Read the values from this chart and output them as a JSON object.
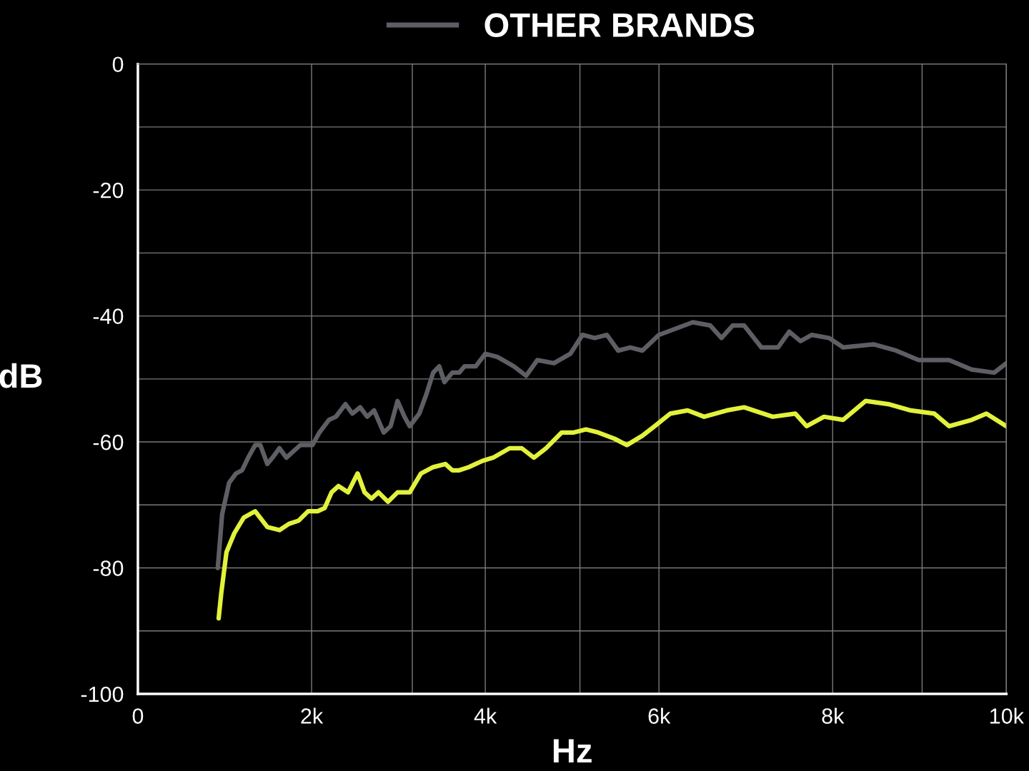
{
  "chart_data": {
    "type": "line",
    "xlabel": "Hz",
    "ylabel": "dB",
    "xlim": [
      0,
      10000
    ],
    "ylim": [
      -100,
      0
    ],
    "xticks": [
      {
        "value": 0,
        "label": "0"
      },
      {
        "value": 2000,
        "label": "2k"
      },
      {
        "value": 3160,
        "label": null
      },
      {
        "value": 4000,
        "label": "4k"
      },
      {
        "value": 5090,
        "label": null
      },
      {
        "value": 6000,
        "label": "6k"
      },
      {
        "value": 8000,
        "label": "8k"
      },
      {
        "value": 9030,
        "label": null
      },
      {
        "value": 10000,
        "label": "10k"
      }
    ],
    "yticks": [
      {
        "value": -100,
        "label": "-100"
      },
      {
        "value": -90,
        "label": null
      },
      {
        "value": -80,
        "label": "-80"
      },
      {
        "value": -70,
        "label": null
      },
      {
        "value": -60,
        "label": "-60"
      },
      {
        "value": -50,
        "label": null
      },
      {
        "value": -40,
        "label": "-40"
      },
      {
        "value": -30,
        "label": null
      },
      {
        "value": -20,
        "label": "-20"
      },
      {
        "value": -10,
        "label": null
      },
      {
        "value": 0,
        "label": "0"
      }
    ],
    "grid": true,
    "legend": "top",
    "marker": "none",
    "line_style": "solid",
    "series": [
      {
        "color": "#e2f23c",
        "x": [
          930,
          960,
          1020,
          1110,
          1220,
          1350,
          1490,
          1630,
          1740,
          1850,
          1960,
          2070,
          2150,
          2230,
          2310,
          2420,
          2530,
          2610,
          2690,
          2770,
          2880,
          2990,
          3130,
          3260,
          3400,
          3540,
          3620,
          3700,
          3810,
          3890,
          3970,
          4090,
          4280,
          4420,
          4560,
          4700,
          4880,
          5020,
          5160,
          5300,
          5490,
          5630,
          5810,
          5950,
          6130,
          6330,
          6520,
          6780,
          6980,
          7310,
          7570,
          7700,
          7900,
          8120,
          8380,
          8640,
          8900,
          9170,
          9340,
          9600,
          9770,
          10000
        ],
        "values": [
          -88,
          -84,
          -77.5,
          -74.5,
          -72,
          -71,
          -73.5,
          -74,
          -73,
          -72.5,
          -71,
          -71,
          -70.5,
          -68,
          -67,
          -68,
          -65,
          -68,
          -69,
          -68,
          -69.5,
          -68,
          -68,
          -65,
          -64,
          -63.5,
          -64.5,
          -64.5,
          -64,
          -63.5,
          -63,
          -62.5,
          -61,
          -61,
          -62.5,
          -61,
          -58.5,
          -58.5,
          -58,
          -58.5,
          -59.5,
          -60.5,
          -59,
          -57.5,
          -55.5,
          -55,
          -56,
          -55,
          -54.5,
          -56,
          -55.5,
          -57.5,
          -56,
          -56.5,
          -53.5,
          -54,
          -55,
          -55.5,
          -57.5,
          -56.5,
          -55.5,
          -57.5
        ]
      },
      {
        "name": "OTHER BRANDS",
        "color": "#5e5f65",
        "x": [
          920,
          970,
          1050,
          1130,
          1200,
          1270,
          1350,
          1410,
          1490,
          1550,
          1630,
          1710,
          1790,
          1870,
          2010,
          2090,
          2200,
          2280,
          2390,
          2470,
          2560,
          2640,
          2720,
          2830,
          2910,
          2990,
          3070,
          3130,
          3240,
          3320,
          3400,
          3470,
          3530,
          3620,
          3700,
          3760,
          3890,
          4000,
          4140,
          4330,
          4470,
          4600,
          4790,
          4980,
          5120,
          5260,
          5400,
          5530,
          5670,
          5810,
          6000,
          6390,
          6590,
          6720,
          6850,
          6980,
          7180,
          7370,
          7500,
          7630,
          7760,
          7960,
          8120,
          8470,
          8730,
          8990,
          9340,
          9600,
          9860,
          10000
        ],
        "values": [
          -80,
          -71.5,
          -66.5,
          -65,
          -64.5,
          -62.5,
          -60.5,
          -60.5,
          -63.5,
          -62.5,
          -61,
          -62.5,
          -61.5,
          -60.5,
          -60.5,
          -58.5,
          -56.5,
          -56,
          -54,
          -55.5,
          -54.5,
          -56,
          -55,
          -58.5,
          -57.5,
          -53.5,
          -56,
          -57.5,
          -55.5,
          -52.5,
          -49,
          -48,
          -50.5,
          -49,
          -49,
          -48,
          -48,
          -46,
          -46.5,
          -48,
          -49.5,
          -47,
          -47.5,
          -46,
          -43,
          -43.5,
          -43,
          -45.5,
          -45,
          -45.5,
          -43,
          -41,
          -41.5,
          -43.5,
          -41.5,
          -41.5,
          -45,
          -45,
          -42.5,
          -44,
          -43,
          -43.5,
          -45,
          -44.5,
          -45.5,
          -47,
          -47,
          -48.5,
          -49,
          -47.5
        ]
      }
    ]
  }
}
